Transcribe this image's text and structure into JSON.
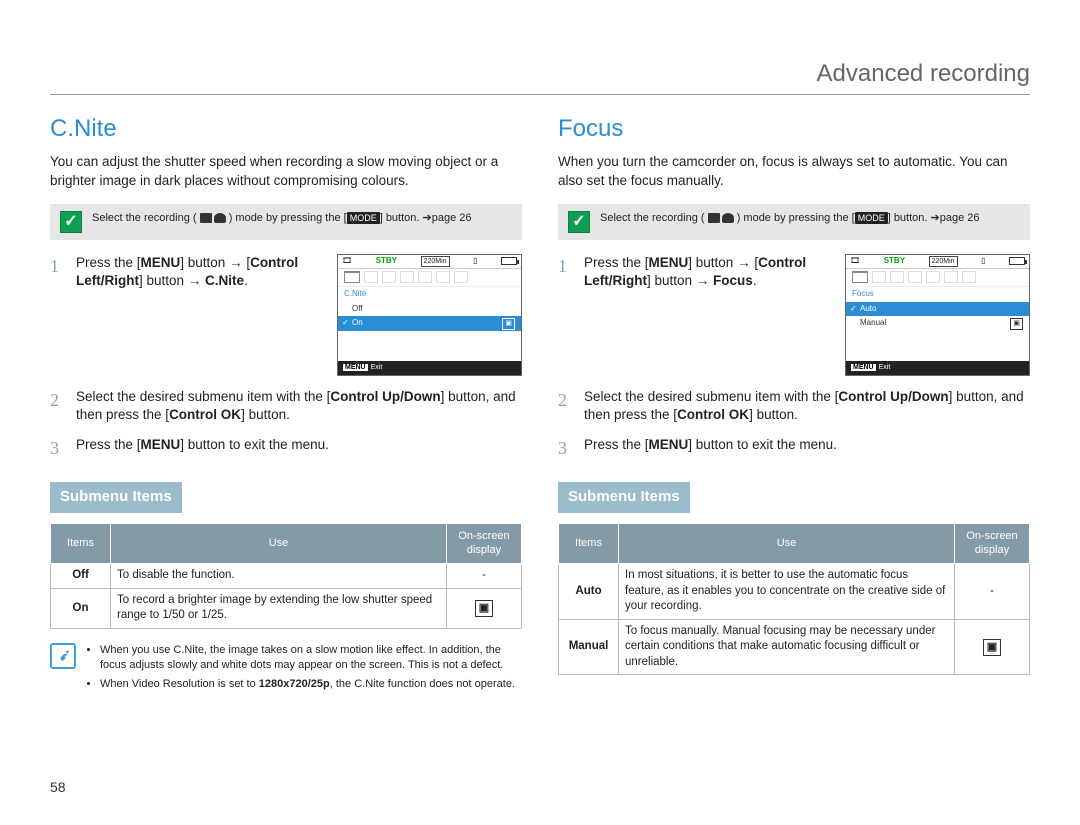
{
  "header": {
    "breadcrumb": "Advanced recording"
  },
  "pageNumber": "58",
  "colors": {
    "accent": "#2a8dd6",
    "submenuHeader": "#9abccb",
    "tableHeader": "#839ba6",
    "noteBg": "#e6e6e6",
    "checkBg": "#0f9f53"
  },
  "left": {
    "title": "C.Nite",
    "intro": "You can adjust the shutter speed when recording a slow moving object or a brighter image in dark places without compromising colours.",
    "note": {
      "prefix": "Select the recording (",
      "suffix": ") mode by pressing the [",
      "mode": "MODE",
      "tail": "] button. ➔page 26"
    },
    "steps": [
      {
        "n": "1",
        "html": "Press the [<b>MENU</b>] button → [<b>Control Left/Right</b>] button → <b>C.Nite</b>."
      },
      {
        "n": "2",
        "html": "Select the desired submenu item with the [<b>Control Up/Down</b>] button, and then press the [<b>Control OK</b>] button."
      },
      {
        "n": "3",
        "html": "Press the [<b>MENU</b>] button to exit the menu."
      }
    ],
    "lcd": {
      "stby": "STBY",
      "time": "220Min",
      "menuTitle": "C.Nite",
      "options": [
        {
          "label": "Off",
          "selected": false
        },
        {
          "label": "On",
          "selected": true,
          "hasIcon": true
        }
      ],
      "exit": "Exit",
      "menuBtn": "MENU"
    },
    "submenuLabel": "Submenu Items",
    "table": {
      "headers": [
        "Items",
        "Use",
        "On-screen display"
      ],
      "rows": [
        {
          "item": "Off",
          "use": "To disable the function.",
          "osd": "-"
        },
        {
          "item": "On",
          "use": "To record a brighter image by extending the low shutter speed range to 1/50 or 1/25.",
          "osd": "icon"
        }
      ]
    },
    "tips": [
      "When you use C.Nite, the image takes on a slow motion like effect. In addition, the focus adjusts slowly and white dots may appear on the screen. This is not a defect.",
      "When Video Resolution is set to <b>1280x720/25p</b>, the C.Nite function does not operate."
    ]
  },
  "right": {
    "title": "Focus",
    "intro": "When you turn the camcorder on, focus is always set to automatic. You can also set the focus manually.",
    "note": {
      "prefix": "Select the recording (",
      "suffix": ") mode by pressing the [",
      "mode": "MODE",
      "tail": "] button. ➔page 26"
    },
    "steps": [
      {
        "n": "1",
        "html": "Press the [<b>MENU</b>] button → [<b>Control Left/Right</b>] button → <b>Focus</b>."
      },
      {
        "n": "2",
        "html": "Select the desired submenu item with the [<b>Control Up/Down</b>] button, and then press the [<b>Control OK</b>] button."
      },
      {
        "n": "3",
        "html": "Press the [<b>MENU</b>] button to exit the menu."
      }
    ],
    "lcd": {
      "stby": "STBY",
      "time": "220Min",
      "menuTitle": "Focus",
      "options": [
        {
          "label": "Auto",
          "selected": true
        },
        {
          "label": "Manual",
          "selected": false,
          "hasIcon": true
        }
      ],
      "exit": "Exit",
      "menuBtn": "MENU"
    },
    "submenuLabel": "Submenu Items",
    "table": {
      "headers": [
        "Items",
        "Use",
        "On-screen display"
      ],
      "rows": [
        {
          "item": "Auto",
          "use": "In most situations, it is better to use the automatic focus feature, as it enables you to concentrate on the creative side of your recording.",
          "osd": "-"
        },
        {
          "item": "Manual",
          "use": "To focus manually. Manual focusing may be necessary under certain conditions that make automatic focusing difficult or unreliable.",
          "osd": "icon"
        }
      ]
    }
  }
}
